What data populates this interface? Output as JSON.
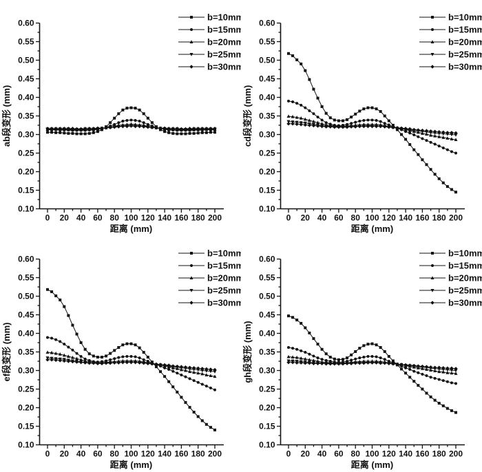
{
  "palette": {
    "ink": "#111111",
    "background": "#ffffff"
  },
  "chart_data": [
    {
      "type": "line",
      "id": "ab",
      "title": "",
      "xlabel": "距离 (mm)",
      "ylabel": "ab段变形 (mm)",
      "xlim": [
        0,
        200
      ],
      "ylim": [
        0.1,
        0.6
      ],
      "xtick_step": 20,
      "ytick_step": 0.05,
      "x_start": 0,
      "x_step": 5,
      "grid": false,
      "legend_position": "top-right",
      "series": [
        {
          "name": "b=10mm",
          "marker": "square",
          "values": [
            0.306,
            0.306,
            0.305,
            0.305,
            0.304,
            0.303,
            0.303,
            0.302,
            0.302,
            0.302,
            0.303,
            0.305,
            0.308,
            0.313,
            0.321,
            0.332,
            0.344,
            0.356,
            0.366,
            0.371,
            0.372,
            0.371,
            0.366,
            0.356,
            0.344,
            0.332,
            0.321,
            0.313,
            0.308,
            0.305,
            0.303,
            0.302,
            0.302,
            0.302,
            0.303,
            0.303,
            0.304,
            0.305,
            0.305,
            0.306,
            0.306
          ]
        },
        {
          "name": "b=15mm",
          "marker": "circle",
          "values": [
            0.313,
            0.313,
            0.313,
            0.312,
            0.312,
            0.312,
            0.311,
            0.311,
            0.311,
            0.311,
            0.312,
            0.312,
            0.314,
            0.316,
            0.319,
            0.323,
            0.327,
            0.332,
            0.336,
            0.338,
            0.339,
            0.338,
            0.336,
            0.332,
            0.327,
            0.323,
            0.319,
            0.316,
            0.314,
            0.312,
            0.312,
            0.311,
            0.311,
            0.311,
            0.311,
            0.312,
            0.312,
            0.312,
            0.313,
            0.313,
            0.313
          ]
        },
        {
          "name": "b=20mm",
          "marker": "triangle-up",
          "values": [
            0.314,
            0.314,
            0.314,
            0.314,
            0.314,
            0.313,
            0.313,
            0.313,
            0.313,
            0.313,
            0.314,
            0.314,
            0.315,
            0.316,
            0.318,
            0.32,
            0.322,
            0.325,
            0.326,
            0.327,
            0.328,
            0.327,
            0.326,
            0.325,
            0.322,
            0.32,
            0.318,
            0.316,
            0.315,
            0.314,
            0.314,
            0.313,
            0.313,
            0.313,
            0.313,
            0.313,
            0.314,
            0.314,
            0.314,
            0.314,
            0.314
          ]
        },
        {
          "name": "b=25mm",
          "marker": "triangle-down",
          "values": [
            0.315,
            0.315,
            0.315,
            0.315,
            0.315,
            0.315,
            0.314,
            0.314,
            0.314,
            0.315,
            0.315,
            0.315,
            0.316,
            0.317,
            0.318,
            0.319,
            0.321,
            0.322,
            0.323,
            0.324,
            0.325,
            0.324,
            0.323,
            0.322,
            0.321,
            0.319,
            0.318,
            0.317,
            0.316,
            0.315,
            0.315,
            0.315,
            0.314,
            0.314,
            0.314,
            0.315,
            0.315,
            0.315,
            0.315,
            0.315,
            0.315
          ]
        },
        {
          "name": "b=30mm",
          "marker": "diamond",
          "values": [
            0.316,
            0.316,
            0.316,
            0.316,
            0.316,
            0.316,
            0.316,
            0.315,
            0.315,
            0.316,
            0.316,
            0.316,
            0.317,
            0.317,
            0.318,
            0.319,
            0.32,
            0.321,
            0.322,
            0.322,
            0.323,
            0.322,
            0.322,
            0.321,
            0.32,
            0.319,
            0.318,
            0.317,
            0.317,
            0.316,
            0.316,
            0.316,
            0.315,
            0.315,
            0.316,
            0.316,
            0.316,
            0.316,
            0.316,
            0.316,
            0.316
          ]
        }
      ]
    },
    {
      "type": "line",
      "id": "cd",
      "title": "",
      "xlabel": "距离 (mm)",
      "ylabel": "cd段变形 (mm)",
      "xlim": [
        0,
        200
      ],
      "ylim": [
        0.1,
        0.6
      ],
      "xtick_step": 20,
      "ytick_step": 0.05,
      "x_start": 0,
      "x_step": 5,
      "grid": false,
      "legend_position": "top-right",
      "series": [
        {
          "name": "b=10mm",
          "marker": "square",
          "values": [
            0.518,
            0.512,
            0.501,
            0.49,
            0.472,
            0.448,
            0.422,
            0.398,
            0.375,
            0.357,
            0.345,
            0.339,
            0.337,
            0.337,
            0.34,
            0.347,
            0.355,
            0.363,
            0.369,
            0.372,
            0.372,
            0.369,
            0.362,
            0.35,
            0.337,
            0.325,
            0.313,
            0.3,
            0.287,
            0.273,
            0.259,
            0.246,
            0.232,
            0.219,
            0.206,
            0.193,
            0.181,
            0.17,
            0.16,
            0.152,
            0.145
          ]
        },
        {
          "name": "b=15mm",
          "marker": "circle",
          "values": [
            0.39,
            0.388,
            0.384,
            0.379,
            0.372,
            0.364,
            0.356,
            0.347,
            0.339,
            0.332,
            0.328,
            0.325,
            0.324,
            0.325,
            0.327,
            0.33,
            0.333,
            0.336,
            0.338,
            0.339,
            0.339,
            0.338,
            0.335,
            0.33,
            0.326,
            0.321,
            0.317,
            0.313,
            0.308,
            0.304,
            0.299,
            0.294,
            0.289,
            0.284,
            0.279,
            0.274,
            0.269,
            0.264,
            0.259,
            0.254,
            0.25
          ]
        },
        {
          "name": "b=20mm",
          "marker": "triangle-up",
          "values": [
            0.349,
            0.348,
            0.346,
            0.344,
            0.341,
            0.338,
            0.335,
            0.332,
            0.329,
            0.326,
            0.324,
            0.323,
            0.322,
            0.322,
            0.323,
            0.324,
            0.325,
            0.326,
            0.327,
            0.327,
            0.327,
            0.327,
            0.326,
            0.324,
            0.322,
            0.32,
            0.318,
            0.316,
            0.313,
            0.311,
            0.308,
            0.306,
            0.303,
            0.301,
            0.298,
            0.296,
            0.294,
            0.292,
            0.29,
            0.288,
            0.286
          ]
        },
        {
          "name": "b=25mm",
          "marker": "triangle-down",
          "values": [
            0.335,
            0.334,
            0.333,
            0.332,
            0.331,
            0.329,
            0.327,
            0.326,
            0.324,
            0.323,
            0.322,
            0.321,
            0.321,
            0.321,
            0.321,
            0.322,
            0.322,
            0.323,
            0.323,
            0.324,
            0.324,
            0.323,
            0.323,
            0.322,
            0.32,
            0.319,
            0.317,
            0.316,
            0.314,
            0.313,
            0.311,
            0.31,
            0.308,
            0.307,
            0.305,
            0.304,
            0.303,
            0.302,
            0.301,
            0.3,
            0.299
          ]
        },
        {
          "name": "b=30mm",
          "marker": "diamond",
          "values": [
            0.329,
            0.329,
            0.328,
            0.327,
            0.326,
            0.325,
            0.324,
            0.323,
            0.322,
            0.321,
            0.321,
            0.32,
            0.32,
            0.32,
            0.32,
            0.321,
            0.321,
            0.322,
            0.322,
            0.322,
            0.322,
            0.322,
            0.322,
            0.321,
            0.32,
            0.319,
            0.318,
            0.317,
            0.316,
            0.315,
            0.313,
            0.312,
            0.311,
            0.31,
            0.309,
            0.308,
            0.307,
            0.306,
            0.305,
            0.305,
            0.304
          ]
        }
      ]
    },
    {
      "type": "line",
      "id": "ef",
      "title": "",
      "xlabel": "距离 (mm)",
      "ylabel": "ef段变形 (mm)",
      "xlim": [
        0,
        200
      ],
      "ylim": [
        0.1,
        0.6
      ],
      "xtick_step": 20,
      "ytick_step": 0.05,
      "x_start": 0,
      "x_step": 5,
      "grid": false,
      "legend_position": "top-right",
      "series": [
        {
          "name": "b=10mm",
          "marker": "square",
          "values": [
            0.518,
            0.512,
            0.501,
            0.49,
            0.472,
            0.448,
            0.422,
            0.398,
            0.375,
            0.357,
            0.345,
            0.339,
            0.336,
            0.336,
            0.339,
            0.346,
            0.354,
            0.362,
            0.369,
            0.372,
            0.372,
            0.369,
            0.361,
            0.349,
            0.336,
            0.323,
            0.31,
            0.297,
            0.284,
            0.27,
            0.256,
            0.242,
            0.228,
            0.214,
            0.201,
            0.188,
            0.176,
            0.165,
            0.155,
            0.147,
            0.14
          ]
        },
        {
          "name": "b=15mm",
          "marker": "circle",
          "values": [
            0.389,
            0.387,
            0.383,
            0.378,
            0.371,
            0.363,
            0.355,
            0.346,
            0.338,
            0.331,
            0.327,
            0.324,
            0.323,
            0.324,
            0.326,
            0.329,
            0.332,
            0.335,
            0.337,
            0.338,
            0.338,
            0.337,
            0.334,
            0.329,
            0.325,
            0.32,
            0.316,
            0.312,
            0.307,
            0.303,
            0.298,
            0.293,
            0.288,
            0.283,
            0.278,
            0.273,
            0.268,
            0.263,
            0.258,
            0.253,
            0.248
          ]
        },
        {
          "name": "b=20mm",
          "marker": "triangle-up",
          "values": [
            0.349,
            0.348,
            0.346,
            0.344,
            0.341,
            0.338,
            0.335,
            0.332,
            0.329,
            0.326,
            0.324,
            0.322,
            0.321,
            0.321,
            0.322,
            0.323,
            0.324,
            0.325,
            0.326,
            0.326,
            0.326,
            0.326,
            0.325,
            0.323,
            0.321,
            0.319,
            0.317,
            0.315,
            0.312,
            0.31,
            0.307,
            0.305,
            0.302,
            0.3,
            0.297,
            0.295,
            0.293,
            0.291,
            0.288,
            0.286,
            0.284
          ]
        },
        {
          "name": "b=25mm",
          "marker": "triangle-down",
          "values": [
            0.334,
            0.333,
            0.332,
            0.331,
            0.33,
            0.328,
            0.326,
            0.325,
            0.323,
            0.322,
            0.321,
            0.32,
            0.32,
            0.32,
            0.32,
            0.321,
            0.321,
            0.322,
            0.322,
            0.323,
            0.323,
            0.322,
            0.322,
            0.321,
            0.319,
            0.318,
            0.316,
            0.315,
            0.313,
            0.312,
            0.31,
            0.309,
            0.307,
            0.306,
            0.304,
            0.303,
            0.302,
            0.3,
            0.299,
            0.298,
            0.297
          ]
        },
        {
          "name": "b=30mm",
          "marker": "diamond",
          "values": [
            0.329,
            0.329,
            0.328,
            0.327,
            0.326,
            0.325,
            0.324,
            0.323,
            0.322,
            0.321,
            0.32,
            0.32,
            0.319,
            0.319,
            0.32,
            0.32,
            0.321,
            0.321,
            0.322,
            0.322,
            0.322,
            0.322,
            0.321,
            0.32,
            0.319,
            0.318,
            0.317,
            0.316,
            0.315,
            0.314,
            0.312,
            0.311,
            0.31,
            0.309,
            0.308,
            0.307,
            0.306,
            0.305,
            0.304,
            0.303,
            0.302
          ]
        }
      ]
    },
    {
      "type": "line",
      "id": "gh",
      "title": "",
      "xlabel": "距离 (mm)",
      "ylabel": "gh段变形 (mm)",
      "xlim": [
        0,
        200
      ],
      "ylim": [
        0.1,
        0.6
      ],
      "xtick_step": 20,
      "ytick_step": 0.05,
      "x_start": 0,
      "x_step": 5,
      "grid": false,
      "legend_position": "top-right",
      "series": [
        {
          "name": "b=10mm",
          "marker": "square",
          "values": [
            0.447,
            0.443,
            0.436,
            0.427,
            0.415,
            0.401,
            0.386,
            0.371,
            0.357,
            0.345,
            0.336,
            0.331,
            0.329,
            0.33,
            0.334,
            0.342,
            0.351,
            0.36,
            0.367,
            0.371,
            0.372,
            0.369,
            0.362,
            0.351,
            0.338,
            0.326,
            0.315,
            0.304,
            0.293,
            0.282,
            0.271,
            0.26,
            0.25,
            0.239,
            0.229,
            0.22,
            0.212,
            0.205,
            0.198,
            0.192,
            0.187
          ]
        },
        {
          "name": "b=15mm",
          "marker": "circle",
          "values": [
            0.362,
            0.36,
            0.357,
            0.353,
            0.349,
            0.344,
            0.339,
            0.334,
            0.33,
            0.327,
            0.325,
            0.323,
            0.322,
            0.323,
            0.325,
            0.328,
            0.331,
            0.334,
            0.336,
            0.338,
            0.338,
            0.337,
            0.334,
            0.33,
            0.325,
            0.321,
            0.316,
            0.312,
            0.307,
            0.303,
            0.298,
            0.294,
            0.29,
            0.286,
            0.282,
            0.279,
            0.276,
            0.273,
            0.27,
            0.267,
            0.265
          ]
        },
        {
          "name": "b=20mm",
          "marker": "triangle-up",
          "values": [
            0.337,
            0.336,
            0.335,
            0.333,
            0.331,
            0.329,
            0.327,
            0.325,
            0.323,
            0.322,
            0.321,
            0.32,
            0.32,
            0.32,
            0.321,
            0.322,
            0.323,
            0.324,
            0.325,
            0.325,
            0.325,
            0.325,
            0.324,
            0.323,
            0.321,
            0.319,
            0.317,
            0.315,
            0.313,
            0.311,
            0.309,
            0.307,
            0.305,
            0.303,
            0.301,
            0.299,
            0.297,
            0.296,
            0.294,
            0.293,
            0.292
          ]
        },
        {
          "name": "b=25mm",
          "marker": "triangle-down",
          "values": [
            0.326,
            0.326,
            0.325,
            0.324,
            0.323,
            0.322,
            0.321,
            0.321,
            0.32,
            0.32,
            0.319,
            0.319,
            0.319,
            0.319,
            0.32,
            0.32,
            0.321,
            0.321,
            0.322,
            0.322,
            0.322,
            0.322,
            0.321,
            0.32,
            0.319,
            0.318,
            0.317,
            0.316,
            0.314,
            0.313,
            0.312,
            0.31,
            0.309,
            0.308,
            0.306,
            0.305,
            0.304,
            0.303,
            0.302,
            0.301,
            0.3
          ]
        },
        {
          "name": "b=30mm",
          "marker": "diamond",
          "values": [
            0.322,
            0.322,
            0.321,
            0.321,
            0.32,
            0.32,
            0.319,
            0.319,
            0.319,
            0.318,
            0.318,
            0.318,
            0.318,
            0.318,
            0.319,
            0.319,
            0.32,
            0.32,
            0.32,
            0.321,
            0.321,
            0.321,
            0.32,
            0.32,
            0.319,
            0.318,
            0.317,
            0.316,
            0.315,
            0.314,
            0.313,
            0.312,
            0.311,
            0.31,
            0.309,
            0.308,
            0.308,
            0.307,
            0.306,
            0.306,
            0.305
          ]
        }
      ]
    }
  ]
}
